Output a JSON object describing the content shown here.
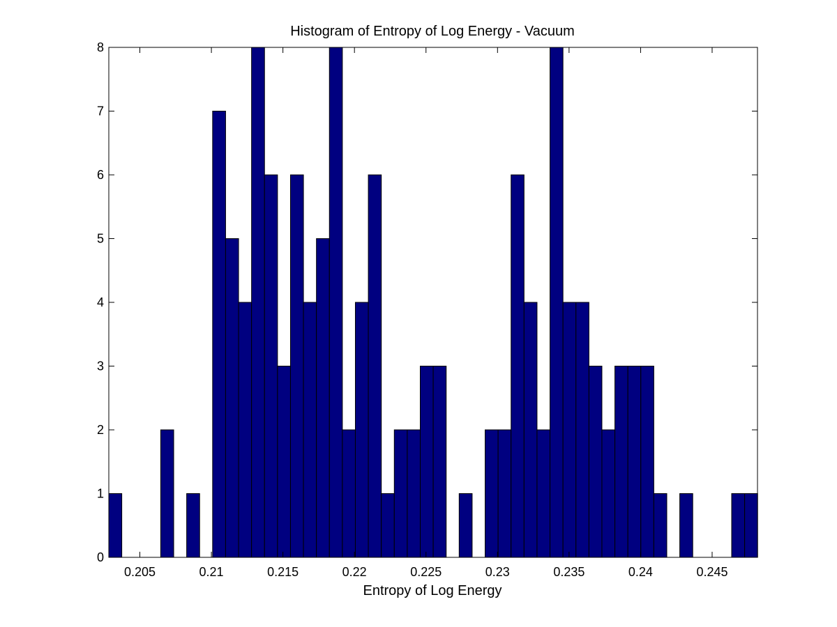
{
  "chart_data": {
    "type": "bar",
    "title": "Histogram of Entropy of Log Energy - Vacuum",
    "xlabel": "Entropy of Log Energy",
    "ylabel": "",
    "xlim": [
      0.20283,
      0.24817
    ],
    "ylim": [
      0,
      8
    ],
    "xticks": [
      0.205,
      0.21,
      0.215,
      0.22,
      0.225,
      0.23,
      0.235,
      0.24,
      0.245
    ],
    "xtick_labels": [
      "0.205",
      "0.21",
      "0.215",
      "0.22",
      "0.225",
      "0.23",
      "0.235",
      "0.24",
      "0.245"
    ],
    "yticks": [
      0,
      1,
      2,
      3,
      4,
      5,
      6,
      7,
      8
    ],
    "ytick_labels": [
      "0",
      "1",
      "2",
      "3",
      "4",
      "5",
      "6",
      "7",
      "8"
    ],
    "bin_start": 0.20283,
    "bin_width": 0.000907,
    "values": [
      1,
      0,
      0,
      0,
      2,
      0,
      1,
      0,
      7,
      5,
      4,
      8,
      6,
      3,
      6,
      4,
      5,
      8,
      2,
      4,
      6,
      1,
      2,
      2,
      3,
      3,
      0,
      1,
      0,
      2,
      2,
      6,
      4,
      2,
      8,
      4,
      4,
      3,
      2,
      3,
      3,
      3,
      1,
      0,
      1,
      0,
      0,
      0,
      1,
      1
    ],
    "grid": false,
    "colors": {
      "bar_fill": "#000080",
      "bar_edge": "#000000",
      "axes": "#000000",
      "background": "#ffffff"
    }
  }
}
